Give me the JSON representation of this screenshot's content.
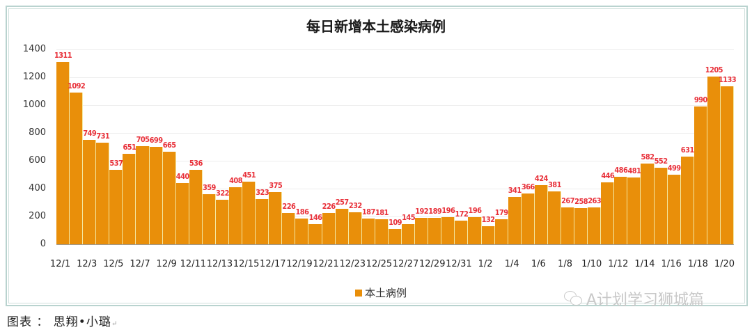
{
  "chart_data": {
    "type": "bar",
    "title": "每日新增本土感染病例",
    "xlabel": "",
    "ylabel": "",
    "ylim": [
      0,
      1400
    ],
    "yticks": [
      0,
      200,
      400,
      600,
      800,
      1000,
      1200,
      1400
    ],
    "grid": true,
    "legend_position": "bottom",
    "bar_color": "#e98f0a",
    "label_color": "#e8313a",
    "categories": [
      "12/1",
      "12/2",
      "12/3",
      "12/4",
      "12/5",
      "12/6",
      "12/7",
      "12/8",
      "12/9",
      "12/10",
      "12/11",
      "12/12",
      "12/13",
      "12/14",
      "12/15",
      "12/16",
      "12/17",
      "12/18",
      "12/19",
      "12/20",
      "12/21",
      "12/22",
      "12/23",
      "12/24",
      "12/25",
      "12/26",
      "12/27",
      "12/28",
      "12/29",
      "12/30",
      "12/31",
      "1/1",
      "1/2",
      "1/3",
      "1/4",
      "1/5",
      "1/6",
      "1/7",
      "1/8",
      "1/9",
      "1/10",
      "1/11",
      "1/12",
      "1/13",
      "1/14",
      "1/15",
      "1/16",
      "1/17",
      "1/18",
      "1/19",
      "1/20"
    ],
    "xtick_labels": [
      "12/1",
      "12/3",
      "12/5",
      "12/7",
      "12/9",
      "12/11",
      "12/13",
      "12/15",
      "12/17",
      "12/19",
      "12/21",
      "12/23",
      "12/25",
      "12/27",
      "12/29",
      "12/31",
      "1/2",
      "1/4",
      "1/6",
      "1/8",
      "1/10",
      "1/12",
      "1/14",
      "1/16",
      "1/18",
      "1/20"
    ],
    "series": [
      {
        "name": "本土病例",
        "values": [
          1311,
          1092,
          749,
          731,
          537,
          651,
          705,
          699,
          665,
          440,
          536,
          359,
          322,
          408,
          451,
          323,
          375,
          226,
          186,
          146,
          226,
          257,
          232,
          187,
          181,
          109,
          145,
          192,
          189,
          196,
          172,
          196,
          132,
          179,
          341,
          366,
          424,
          381,
          267,
          258,
          263,
          446,
          486,
          481,
          582,
          552,
          499,
          631,
          990,
          1205,
          1133
        ]
      }
    ]
  },
  "legend": {
    "label": "本土病例"
  },
  "watermark": {
    "text": "A计划学习狮城篇",
    "icon": "wechat-icon"
  },
  "caption": {
    "text": "图表 ： 思翔•小璐"
  }
}
